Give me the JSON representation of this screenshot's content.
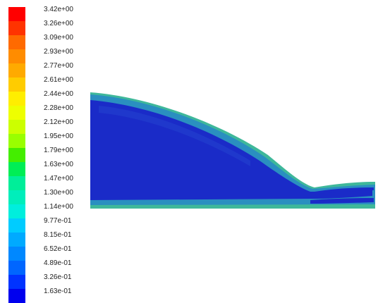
{
  "colormap": {
    "labels": [
      "3.42e+00",
      "3.26e+00",
      "3.09e+00",
      "2.93e+00",
      "2.77e+00",
      "2.61e+00",
      "2.44e+00",
      "2.28e+00",
      "2.12e+00",
      "1.95e+00",
      "1.79e+00",
      "1.63e+00",
      "1.47e+00",
      "1.30e+00",
      "1.14e+00",
      "9.77e-01",
      "8.15e-01",
      "6.52e-01",
      "4.89e-01",
      "3.26e-01",
      "1.63e-01"
    ],
    "colors": [
      "#ff0000",
      "#ff3300",
      "#ff6a00",
      "#ff8c00",
      "#ffaa00",
      "#ffcc00",
      "#ffee00",
      "#eeff00",
      "#ccff00",
      "#99ff00",
      "#44ee00",
      "#00ee55",
      "#00ee99",
      "#00eebb",
      "#00eedd",
      "#00ccff",
      "#00aaff",
      "#0088ff",
      "#0066ff",
      "#0033ff",
      "#0000ee"
    ]
  },
  "contour": {
    "field_color": "#1a2bc8",
    "edge_color": "#2a8fc0",
    "outer_edge_color": "#3fb89a"
  }
}
